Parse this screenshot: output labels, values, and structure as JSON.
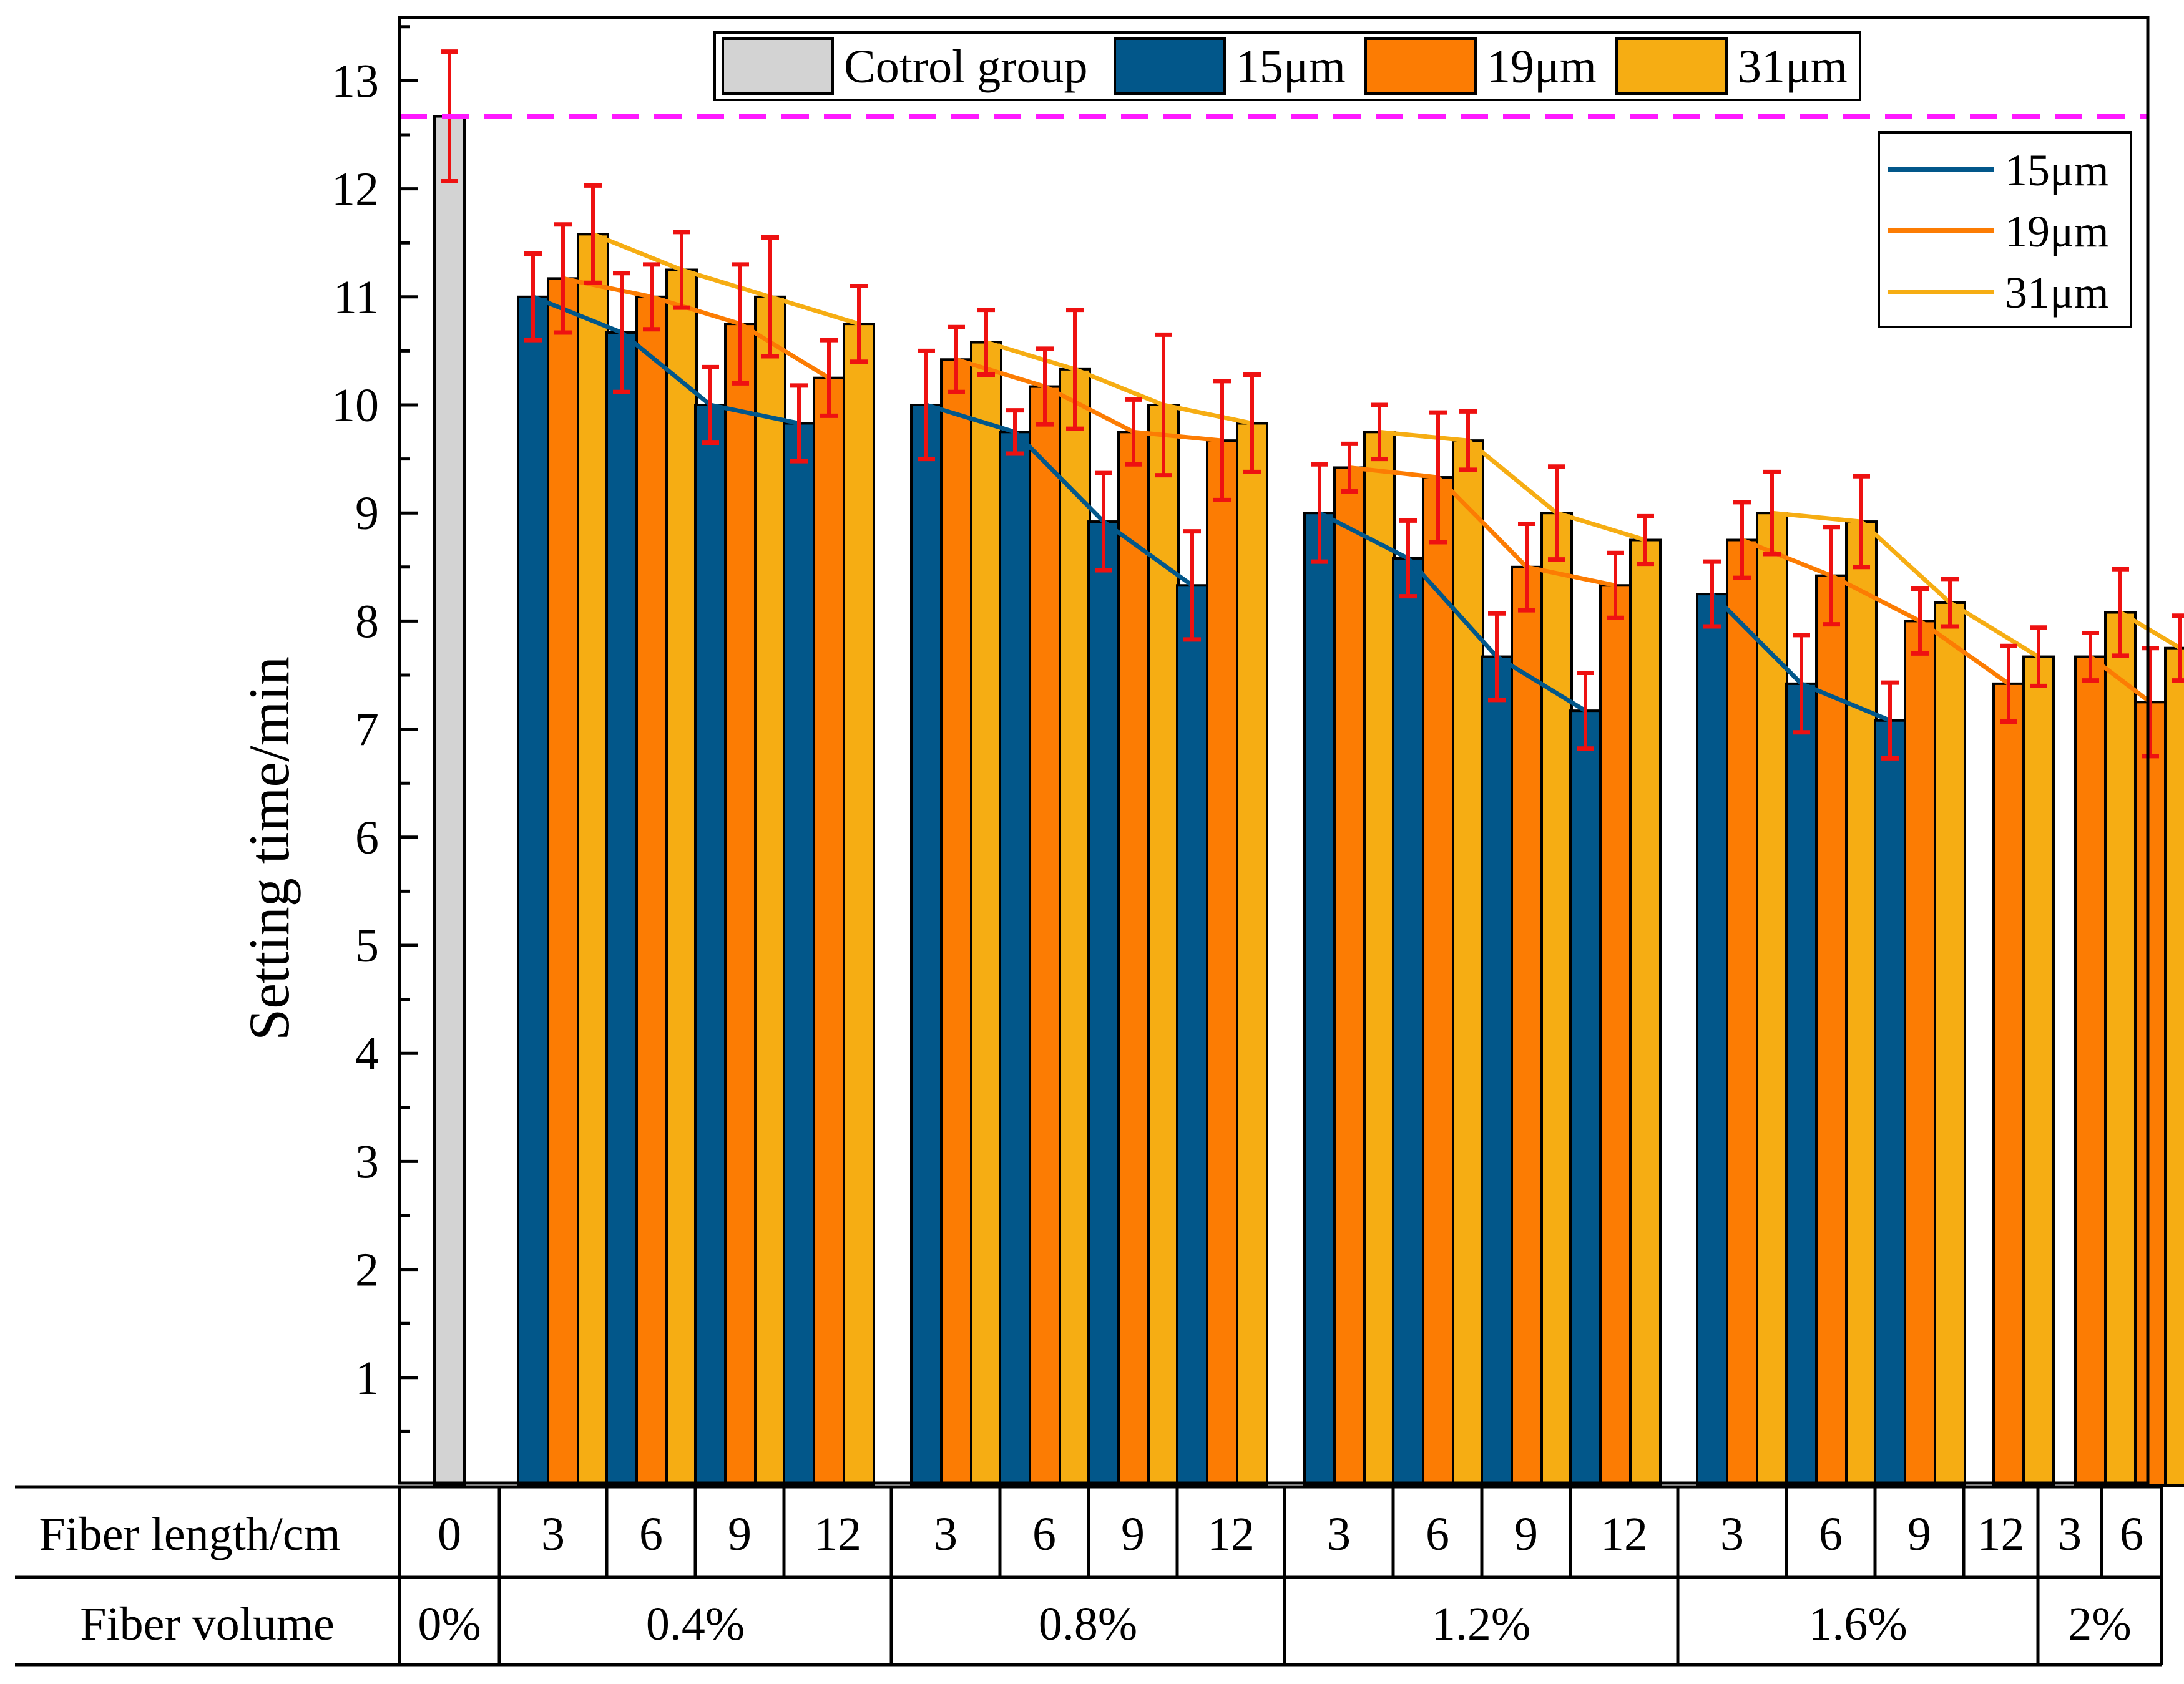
{
  "colors": {
    "control": "#d3d3d3",
    "s15": "#02578a",
    "s19": "#fc7c03",
    "s31": "#f6ad13",
    "error": "#ee1111",
    "reference": "#ff19ff"
  },
  "chart_data": {
    "type": "bar",
    "ylabel": "Setting time/min",
    "xlabel": "",
    "ylim": [
      0,
      13.7
    ],
    "yticks": [
      1,
      2,
      3,
      4,
      5,
      6,
      7,
      8,
      9,
      10,
      11,
      12,
      13
    ],
    "reference_line": 12.67,
    "legend_bars": [
      "Cotrol group",
      "15μm",
      "19μm",
      "31μm"
    ],
    "legend_lines": [
      "15μm",
      "19μm",
      "31μm"
    ],
    "table_rows": [
      "Fiber length/cm",
      "Fiber volume"
    ],
    "control": {
      "length": "0",
      "volume": "0%",
      "value": 12.67,
      "error": 0.6
    },
    "groups": [
      {
        "volume": "0.4%",
        "lengths": [
          "3",
          "6",
          "9",
          "12"
        ],
        "series": {
          "15μm": {
            "values": [
              11.0,
              10.67,
              10.0,
              9.83
            ],
            "errors": [
              0.4,
              0.55,
              0.35,
              0.35
            ]
          },
          "19μm": {
            "values": [
              11.17,
              11.0,
              10.75,
              10.25
            ],
            "errors": [
              0.5,
              0.3,
              0.55,
              0.35
            ]
          },
          "31μm": {
            "values": [
              11.58,
              11.25,
              11.0,
              10.75
            ],
            "errors": [
              0.45,
              0.35,
              0.55,
              0.35
            ]
          }
        }
      },
      {
        "volume": "0.8%",
        "lengths": [
          "3",
          "6",
          "9",
          "12"
        ],
        "series": {
          "15μm": {
            "values": [
              10.0,
              9.75,
              8.92,
              8.33
            ],
            "errors": [
              0.5,
              0.2,
              0.45,
              0.5
            ]
          },
          "19μm": {
            "values": [
              10.42,
              10.17,
              9.75,
              9.67
            ],
            "errors": [
              0.3,
              0.35,
              0.3,
              0.55
            ]
          },
          "31μm": {
            "values": [
              10.58,
              10.33,
              10.0,
              9.83
            ],
            "errors": [
              0.3,
              0.55,
              0.65,
              0.45
            ]
          }
        }
      },
      {
        "volume": "1.2%",
        "lengths": [
          "3",
          "6",
          "9",
          "12"
        ],
        "series": {
          "15μm": {
            "values": [
              9.0,
              8.58,
              7.67,
              7.17
            ],
            "errors": [
              0.45,
              0.35,
              0.4,
              0.35
            ]
          },
          "19μm": {
            "values": [
              9.42,
              9.33,
              8.5,
              8.33
            ],
            "errors": [
              0.22,
              0.6,
              0.4,
              0.3
            ]
          },
          "31μm": {
            "values": [
              9.75,
              9.67,
              9.0,
              8.75
            ],
            "errors": [
              0.25,
              0.27,
              0.43,
              0.22
            ]
          }
        }
      },
      {
        "volume": "1.6%",
        "lengths": [
          "3",
          "6",
          "9",
          "12"
        ],
        "series": {
          "15μm": {
            "values": [
              8.25,
              7.42,
              7.08,
              null
            ],
            "errors": [
              0.3,
              0.45,
              0.35,
              null
            ]
          },
          "19μm": {
            "values": [
              8.75,
              8.42,
              8.0,
              7.42
            ],
            "errors": [
              0.35,
              0.45,
              0.3,
              0.35
            ]
          },
          "31μm": {
            "values": [
              9.0,
              8.92,
              8.17,
              7.67
            ],
            "errors": [
              0.38,
              0.42,
              0.22,
              0.27
            ]
          }
        }
      },
      {
        "volume": "2%",
        "lengths": [
          "3",
          "6"
        ],
        "series": {
          "15μm": {
            "values": [
              null,
              null
            ],
            "errors": [
              null,
              null
            ]
          },
          "19μm": {
            "values": [
              7.67,
              7.25
            ],
            "errors": [
              0.22,
              0.5
            ]
          },
          "31μm": {
            "values": [
              8.08,
              7.75
            ],
            "errors": [
              0.4,
              0.3
            ]
          }
        }
      }
    ]
  }
}
